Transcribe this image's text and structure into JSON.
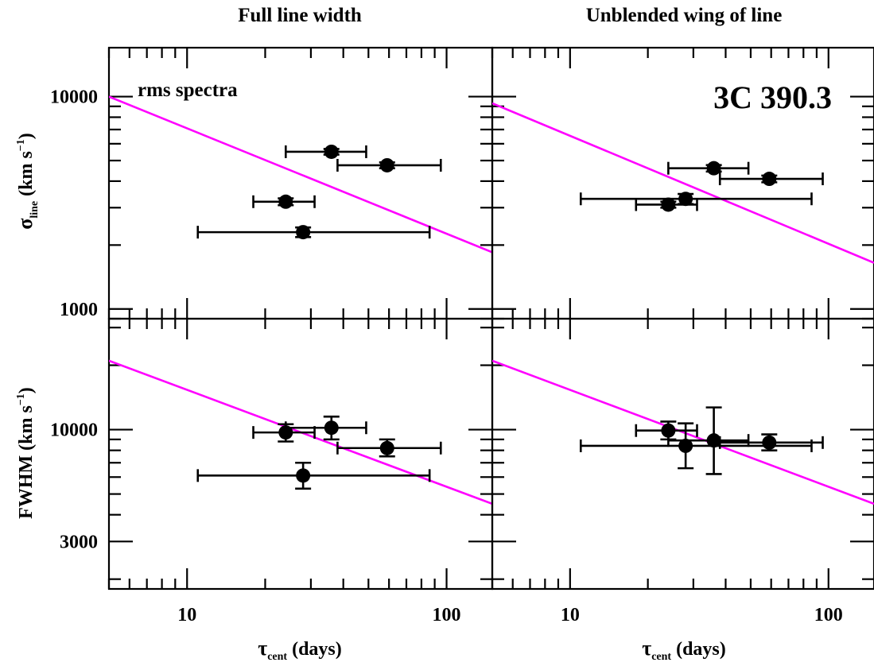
{
  "figure": {
    "col_titles": [
      "Full line width",
      "Unblended wing of line"
    ],
    "ylabels": [
      {
        "base": "σ",
        "sub": "line",
        "main": " (km s",
        "sup": "−1",
        "end": ")"
      },
      {
        "base": "FWHM (km s",
        "sup": "−1",
        "end": ")"
      }
    ],
    "xlabel": {
      "base": "τ",
      "sub": "cent",
      "main": " (days)"
    },
    "annotations": {
      "rms": "rms spectra",
      "object": "3C 390.3"
    }
  },
  "colors": {
    "axes": "#000000",
    "fit_line": "#ff00ff",
    "points": "#000000",
    "background": "#ffffff"
  },
  "chart_data": [
    {
      "type": "scatter",
      "panel": "top-left",
      "title": "Full line width",
      "xlabel": "",
      "ylabel": "σline (km s−1)",
      "xscale": "log",
      "yscale": "log",
      "xlim": [
        5,
        150
      ],
      "ylim": [
        900,
        17000
      ],
      "xticks": [
        10,
        100
      ],
      "yticks": [
        1000,
        10000
      ],
      "ytick_labels": [
        "1000",
        "10000"
      ],
      "annotation": "rms spectra",
      "fit_line": [
        [
          5,
          10000
        ],
        [
          150,
          1850
        ]
      ],
      "points": [
        {
          "x": 24,
          "y": 3200,
          "xerr": [
            18,
            31
          ],
          "yerr": [
            3080,
            3320
          ]
        },
        {
          "x": 28,
          "y": 2300,
          "xerr": [
            11,
            86
          ],
          "yerr": [
            2180,
            2420
          ]
        },
        {
          "x": 36,
          "y": 5500,
          "xerr": [
            24,
            49
          ],
          "yerr": [
            5330,
            5670
          ]
        },
        {
          "x": 59,
          "y": 4750,
          "xerr": [
            38,
            95
          ],
          "yerr": [
            4600,
            4900
          ]
        }
      ]
    },
    {
      "type": "scatter",
      "panel": "top-right",
      "title": "Unblended wing of line",
      "xlabel": "",
      "ylabel": "",
      "xscale": "log",
      "yscale": "log",
      "xlim": [
        5,
        150
      ],
      "ylim": [
        900,
        17000
      ],
      "xticks": [
        10,
        100
      ],
      "yticks": [
        1000,
        10000
      ],
      "annotation": "3C 390.3",
      "fit_line": [
        [
          5,
          9300
        ],
        [
          150,
          1650
        ]
      ],
      "points": [
        {
          "x": 24,
          "y": 3100,
          "xerr": [
            18,
            31
          ],
          "yerr": [
            3000,
            3200
          ]
        },
        {
          "x": 28,
          "y": 3300,
          "xerr": [
            11,
            86
          ],
          "yerr": [
            3120,
            3480
          ]
        },
        {
          "x": 36,
          "y": 4600,
          "xerr": [
            24,
            49
          ],
          "yerr": [
            4440,
            4760
          ]
        },
        {
          "x": 59,
          "y": 4100,
          "xerr": [
            38,
            95
          ],
          "yerr": [
            3950,
            4250
          ]
        }
      ]
    },
    {
      "type": "scatter",
      "panel": "bottom-left",
      "title": "",
      "xlabel": "τcent (days)",
      "ylabel": "FWHM (km s−1)",
      "xscale": "log",
      "yscale": "log",
      "xlim": [
        5,
        150
      ],
      "ylim": [
        1800,
        33000
      ],
      "xticks": [
        10,
        100
      ],
      "yticks": [
        3000,
        10000
      ],
      "ytick_labels": [
        "3000",
        "10000"
      ],
      "fit_line": [
        [
          5,
          21000
        ],
        [
          150,
          4500
        ]
      ],
      "points": [
        {
          "x": 24,
          "y": 9700,
          "xerr": [
            18,
            31
          ],
          "yerr": [
            8800,
            10600
          ]
        },
        {
          "x": 28,
          "y": 6100,
          "xerr": [
            11,
            86
          ],
          "yerr": [
            5300,
            7000
          ]
        },
        {
          "x": 36,
          "y": 10200,
          "xerr": [
            24,
            49
          ],
          "yerr": [
            9000,
            11500
          ]
        },
        {
          "x": 59,
          "y": 8200,
          "xerr": [
            38,
            95
          ],
          "yerr": [
            7500,
            9000
          ]
        }
      ]
    },
    {
      "type": "scatter",
      "panel": "bottom-right",
      "title": "",
      "xlabel": "τcent (days)",
      "ylabel": "",
      "xscale": "log",
      "yscale": "log",
      "xlim": [
        5,
        150
      ],
      "ylim": [
        1800,
        33000
      ],
      "xticks": [
        10,
        100
      ],
      "yticks": [
        3000,
        10000
      ],
      "fit_line": [
        [
          5,
          21000
        ],
        [
          150,
          4500
        ]
      ],
      "points": [
        {
          "x": 24,
          "y": 9900,
          "xerr": [
            18,
            31
          ],
          "yerr": [
            9000,
            10900
          ]
        },
        {
          "x": 28,
          "y": 8400,
          "xerr": [
            11,
            86
          ],
          "yerr": [
            6600,
            10700
          ]
        },
        {
          "x": 36,
          "y": 8900,
          "xerr": [
            24,
            49
          ],
          "yerr": [
            6200,
            12700
          ]
        },
        {
          "x": 59,
          "y": 8700,
          "xerr": [
            38,
            95
          ],
          "yerr": [
            8000,
            9500
          ]
        }
      ]
    }
  ]
}
